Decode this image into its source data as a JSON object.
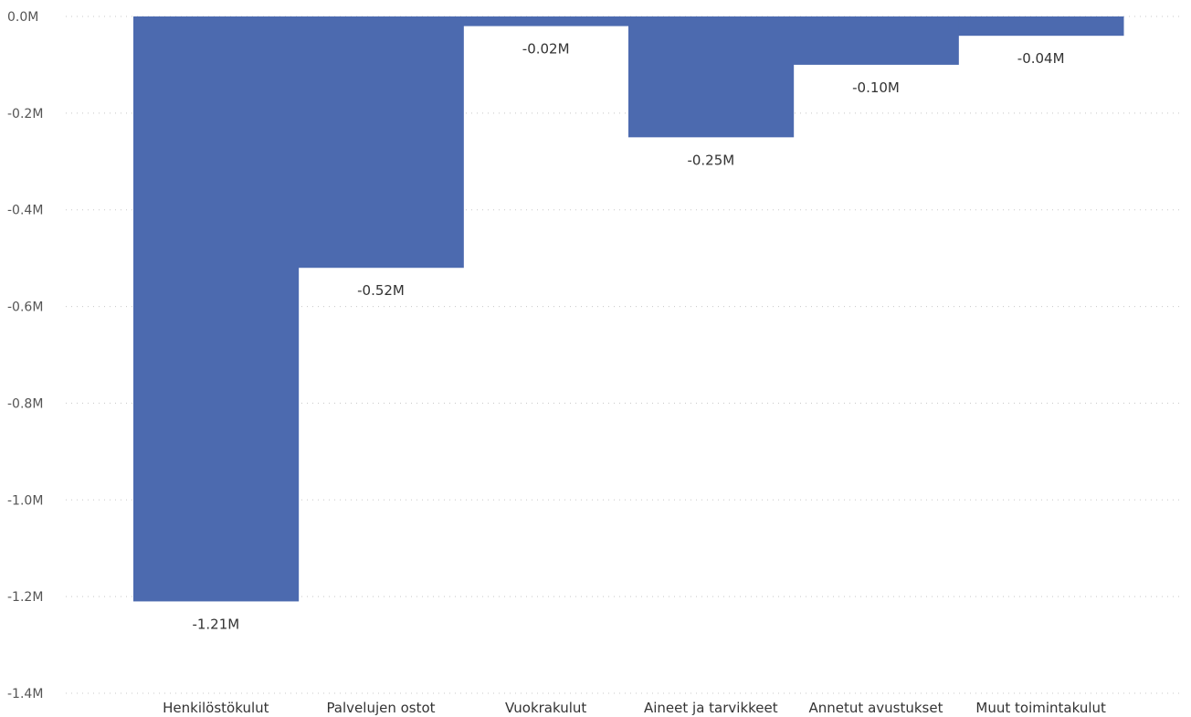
{
  "chart_data": {
    "type": "bar",
    "title": "",
    "xlabel": "",
    "ylabel": "",
    "categories": [
      "Henkilöstökulut",
      "Palvelujen ostot",
      "Vuokrakulut",
      "Aineet ja tarvikkeet",
      "Annetut avustukset",
      "Muut toimintakulut"
    ],
    "values": [
      -1.21,
      -0.52,
      -0.02,
      -0.25,
      -0.1,
      -0.04
    ],
    "data_labels": [
      "-1.21M",
      "-0.52M",
      "-0.02M",
      "-0.25M",
      "-0.10M",
      "-0.04M"
    ],
    "ylim": [
      -1.4,
      0
    ],
    "yticks": [
      0,
      -0.2,
      -0.4,
      -0.6,
      -0.8,
      -1.0,
      -1.2,
      -1.4
    ],
    "ytick_labels": [
      "0.0M",
      "-0.2M",
      "-0.4M",
      "-0.6M",
      "-0.8M",
      "-1.0M",
      "-1.2M",
      "-1.4M"
    ],
    "grid": true,
    "legend": "none",
    "bar_color": "#4c6aaf"
  }
}
